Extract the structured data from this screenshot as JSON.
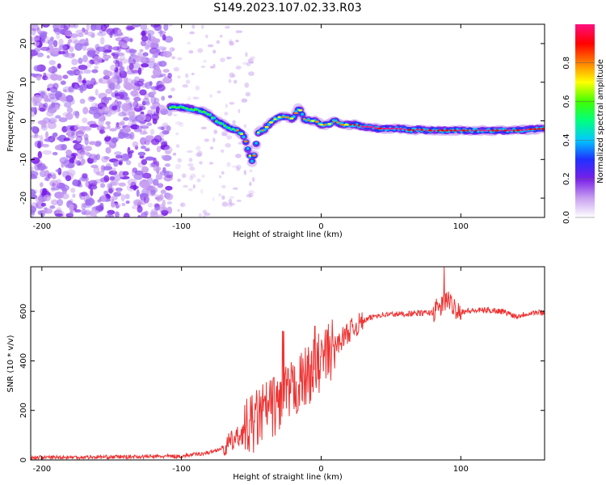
{
  "chart_data": [
    {
      "type": "heatmap",
      "title": "S149.2023.107.02.33.R03",
      "xlabel": "Height of straight line (km)",
      "ylabel": "Frequency (Hz)",
      "xlim": [
        -208,
        160
      ],
      "ylim": [
        -25,
        25
      ],
      "xticks": [
        -200,
        -100,
        0,
        100
      ],
      "yticks": [
        -20,
        -10,
        0,
        10,
        20
      ],
      "colorbar": {
        "label": "Normalized spectral amplitude",
        "range": [
          0,
          1
        ],
        "ticks": [
          "0.0",
          "0.2",
          "0.4",
          "0.6",
          "0.8"
        ],
        "colors": [
          "#ffffff",
          "#c8a0f0",
          "#7a1fe8",
          "#2030ff",
          "#00c8ff",
          "#00ff80",
          "#40ff00",
          "#ffff00",
          "#ff8000",
          "#ff0000",
          "#ff1080"
        ]
      },
      "noise_region_x": [
        -208,
        -108
      ],
      "ridge": {
        "x": [
          -108,
          -100,
          -92,
          -85,
          -80,
          -75,
          -70,
          -65,
          -60,
          -55,
          -52,
          -49,
          -45,
          -40,
          -35,
          -30,
          -25,
          -20,
          -16,
          -12,
          -8,
          -4,
          0,
          5,
          10,
          15,
          20,
          25,
          30,
          35,
          40,
          45,
          50,
          55,
          60,
          65,
          70,
          75,
          80,
          85,
          90,
          100,
          110,
          120,
          130,
          140,
          150,
          160
        ],
        "y": [
          3.5,
          3.5,
          3,
          2.5,
          1.5,
          0,
          -1,
          -2,
          -2.5,
          -4,
          -8,
          -11,
          -3,
          -2,
          0,
          1,
          1,
          0.5,
          3.5,
          0.5,
          0,
          0,
          -1,
          -1,
          0,
          -1,
          -1,
          -1,
          -1.5,
          -1.5,
          -2,
          -2,
          -2,
          -2,
          -2.2,
          -2.5,
          -2.2,
          -2.5,
          -2.5,
          -2.5,
          -2.5,
          -2.5,
          -2.5,
          -2.5,
          -2.5,
          -2.5,
          -2.2,
          -2
        ]
      }
    },
    {
      "type": "line",
      "xlabel": "Height of straight line (km)",
      "ylabel": "SNR (10 * v/v)",
      "xlim": [
        -208,
        160
      ],
      "ylim": [
        0,
        780
      ],
      "xticks": [
        -200,
        -100,
        0,
        100
      ],
      "yticks": [
        0,
        200,
        400,
        600
      ],
      "color": "#ee3333",
      "series": [
        {
          "name": "SNR",
          "x": [
            -208,
            -150,
            -100,
            -80,
            -70,
            -60,
            -50,
            -40,
            -30,
            -20,
            -10,
            0,
            10,
            20,
            30,
            40,
            60,
            80,
            90,
            100,
            120,
            130,
            140,
            150,
            160
          ],
          "values": [
            10,
            12,
            15,
            30,
            50,
            90,
            140,
            200,
            230,
            280,
            340,
            400,
            460,
            520,
            560,
            585,
            590,
            595,
            640,
            600,
            605,
            600,
            580,
            595,
            595
          ]
        }
      ]
    }
  ]
}
